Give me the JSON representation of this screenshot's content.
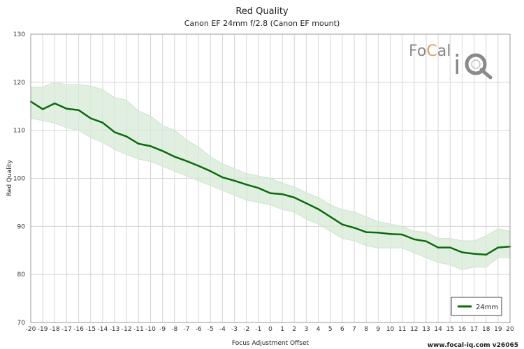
{
  "chart_data": {
    "type": "line",
    "title": "Red Quality",
    "subtitle": "Canon EF 24mm f/2.8 (Canon EF mount)",
    "xlabel": "Focus Adjustment Offset",
    "ylabel": "Red Quality",
    "xlim": [
      -20,
      20
    ],
    "ylim": [
      70,
      130
    ],
    "x_ticks": [
      -20,
      -19,
      -18,
      -17,
      -16,
      -15,
      -14,
      -13,
      -12,
      -11,
      -10,
      -9,
      -8,
      -7,
      -6,
      -5,
      -4,
      -3,
      -2,
      -1,
      0,
      1,
      2,
      3,
      4,
      5,
      6,
      7,
      8,
      9,
      10,
      11,
      12,
      13,
      14,
      15,
      16,
      17,
      18,
      19,
      20
    ],
    "y_ticks": [
      70,
      80,
      90,
      100,
      110,
      120,
      130
    ],
    "grid": true,
    "legend_position": "bottom-right",
    "series": [
      {
        "name": "24mm",
        "color": "#0b6a0b",
        "band_color": "#d7ead7",
        "x": [
          -20,
          -19,
          -18,
          -17,
          -16,
          -15,
          -14,
          -13,
          -12,
          -11,
          -10,
          -9,
          -8,
          -7,
          -6,
          -5,
          -4,
          -3,
          -2,
          -1,
          0,
          1,
          2,
          3,
          4,
          5,
          6,
          7,
          8,
          9,
          10,
          11,
          12,
          13,
          14,
          15,
          16,
          17,
          18,
          19,
          20
        ],
        "values": [
          116.0,
          114.4,
          115.6,
          114.5,
          114.2,
          112.5,
          111.6,
          109.6,
          108.7,
          107.2,
          106.7,
          105.7,
          104.5,
          103.6,
          102.6,
          101.5,
          100.2,
          99.5,
          98.7,
          98.0,
          96.9,
          96.7,
          96.0,
          94.8,
          93.6,
          92.0,
          90.4,
          89.7,
          88.8,
          88.7,
          88.4,
          88.3,
          87.3,
          86.9,
          85.6,
          85.6,
          84.6,
          84.3,
          84.1,
          85.6,
          85.8
        ],
        "upper": [
          119.0,
          119.0,
          120.0,
          119.5,
          119.5,
          119.2,
          118.5,
          116.8,
          116.3,
          114.0,
          113.0,
          111.0,
          110.0,
          108.0,
          106.5,
          104.5,
          103.0,
          102.0,
          101.0,
          100.5,
          100.0,
          99.0,
          98.2,
          97.0,
          96.0,
          94.5,
          93.5,
          93.0,
          92.0,
          91.0,
          90.5,
          90.0,
          89.0,
          88.8,
          87.5,
          87.5,
          87.0,
          87.0,
          88.0,
          89.5,
          89.0
        ],
        "lower": [
          112.5,
          112.0,
          111.5,
          110.5,
          110.0,
          108.5,
          107.5,
          106.0,
          105.0,
          104.0,
          103.5,
          102.5,
          101.5,
          100.5,
          99.5,
          98.5,
          97.5,
          96.5,
          95.5,
          95.0,
          94.5,
          93.5,
          93.0,
          91.5,
          90.5,
          89.0,
          87.5,
          87.0,
          86.0,
          85.5,
          85.5,
          85.5,
          84.5,
          83.5,
          82.5,
          82.0,
          81.0,
          81.5,
          81.5,
          83.5,
          83.5
        ]
      }
    ]
  },
  "logo": {
    "text": "FoCal iQ"
  },
  "footer": {
    "text": "www.focal-iq.com v26065"
  }
}
